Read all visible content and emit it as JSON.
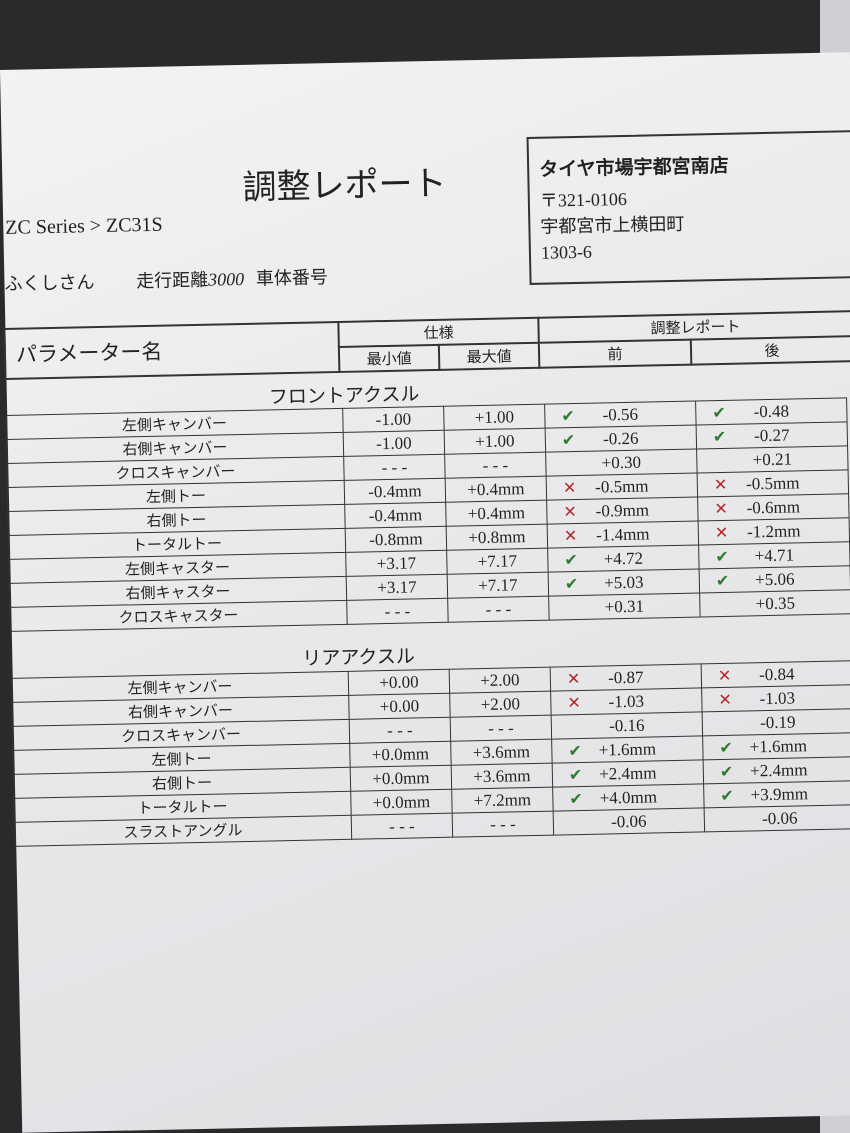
{
  "title": "調整レポート",
  "model": "ZC Series > ZC31S",
  "customer": {
    "name": "ふくしさん",
    "mileage_label": "走行距離",
    "mileage_value": "3000",
    "chassis_label": "車体番号"
  },
  "store": {
    "name": "タイヤ市場宇都宮南店",
    "postal": "〒321-0106",
    "address1": "宇都宮市上横田町",
    "address2": "1303-6"
  },
  "header": {
    "param": "パラメーター名",
    "spec": "仕様",
    "min": "最小値",
    "max": "最大値",
    "report": "調整レポート",
    "before": "前",
    "after": "後"
  },
  "colors": {
    "ok": "#2e7a2e",
    "ng": "#b02a2a"
  },
  "icons": {
    "ok": "check-icon",
    "ng": "x-icon"
  },
  "sections": [
    {
      "title": "フロントアクスル",
      "rows": [
        {
          "name": "左側キャンバー",
          "min": "-1.00",
          "max": "+1.00",
          "before": "-0.56",
          "before_status": "ok",
          "after": "-0.48",
          "after_status": "ok"
        },
        {
          "name": "右側キャンバー",
          "min": "-1.00",
          "max": "+1.00",
          "before": "-0.26",
          "before_status": "ok",
          "after": "-0.27",
          "after_status": "ok"
        },
        {
          "name": "クロスキャンバー",
          "min": "- - -",
          "max": "- - -",
          "before": "+0.30",
          "before_status": null,
          "after": "+0.21",
          "after_status": null
        },
        {
          "name": "左側トー",
          "min": "-0.4mm",
          "max": "+0.4mm",
          "before": "-0.5mm",
          "before_status": "ng",
          "after": "-0.5mm",
          "after_status": "ng"
        },
        {
          "name": "右側トー",
          "min": "-0.4mm",
          "max": "+0.4mm",
          "before": "-0.9mm",
          "before_status": "ng",
          "after": "-0.6mm",
          "after_status": "ng"
        },
        {
          "name": "トータルトー",
          "min": "-0.8mm",
          "max": "+0.8mm",
          "before": "-1.4mm",
          "before_status": "ng",
          "after": "-1.2mm",
          "after_status": "ng"
        },
        {
          "name": "左側キャスター",
          "min": "+3.17",
          "max": "+7.17",
          "before": "+4.72",
          "before_status": "ok",
          "after": "+4.71",
          "after_status": "ok"
        },
        {
          "name": "右側キャスター",
          "min": "+3.17",
          "max": "+7.17",
          "before": "+5.03",
          "before_status": "ok",
          "after": "+5.06",
          "after_status": "ok"
        },
        {
          "name": "クロスキャスター",
          "min": "- - -",
          "max": "- - -",
          "before": "+0.31",
          "before_status": null,
          "after": "+0.35",
          "after_status": null
        }
      ]
    },
    {
      "title": "リアアクスル",
      "rows": [
        {
          "name": "左側キャンバー",
          "min": "+0.00",
          "max": "+2.00",
          "before": "-0.87",
          "before_status": "ng",
          "after": "-0.84",
          "after_status": "ng"
        },
        {
          "name": "右側キャンバー",
          "min": "+0.00",
          "max": "+2.00",
          "before": "-1.03",
          "before_status": "ng",
          "after": "-1.03",
          "after_status": "ng"
        },
        {
          "name": "クロスキャンバー",
          "min": "- - -",
          "max": "- - -",
          "before": "-0.16",
          "before_status": null,
          "after": "-0.19",
          "after_status": null
        },
        {
          "name": "左側トー",
          "min": "+0.0mm",
          "max": "+3.6mm",
          "before": "+1.6mm",
          "before_status": "ok",
          "after": "+1.6mm",
          "after_status": "ok"
        },
        {
          "name": "右側トー",
          "min": "+0.0mm",
          "max": "+3.6mm",
          "before": "+2.4mm",
          "before_status": "ok",
          "after": "+2.4mm",
          "after_status": "ok"
        },
        {
          "name": "トータルトー",
          "min": "+0.0mm",
          "max": "+7.2mm",
          "before": "+4.0mm",
          "before_status": "ok",
          "after": "+3.9mm",
          "after_status": "ok"
        },
        {
          "name": "スラストアングル",
          "min": "- - -",
          "max": "- - -",
          "before": "-0.06",
          "before_status": null,
          "after": "-0.06",
          "after_status": null
        }
      ]
    }
  ]
}
